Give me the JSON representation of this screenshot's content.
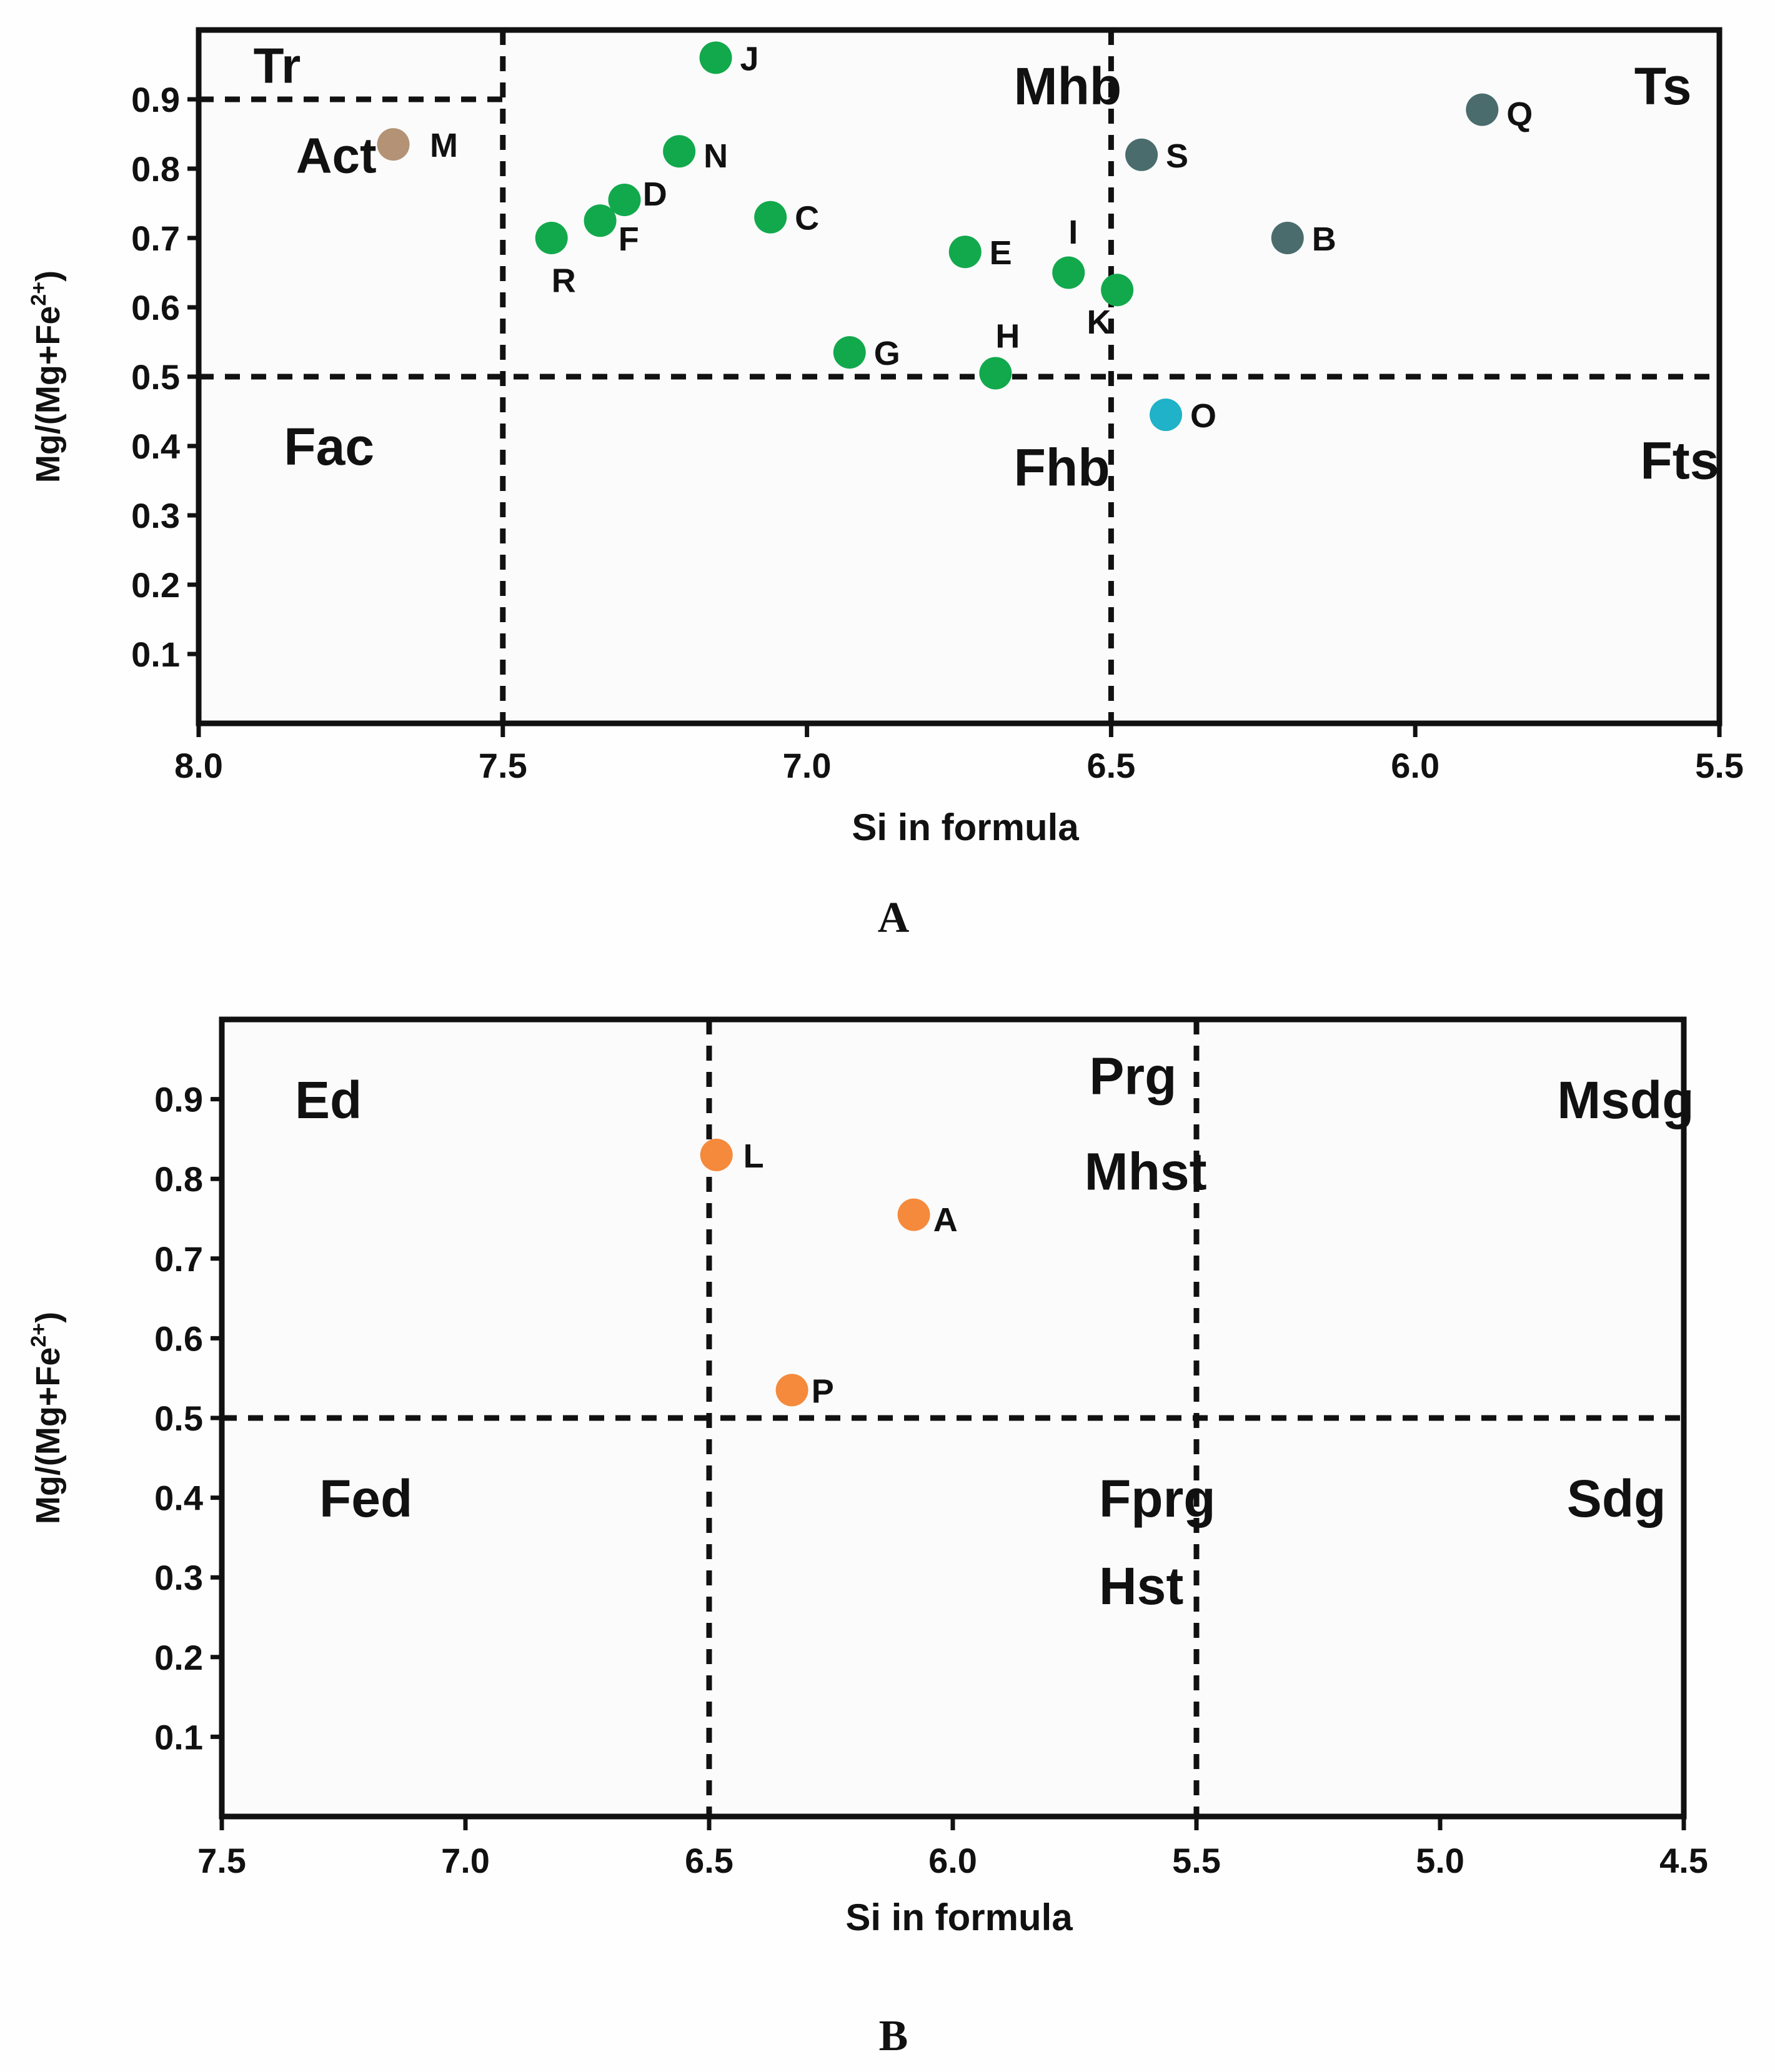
{
  "figure": {
    "panels": [
      "A",
      "B"
    ]
  },
  "chart_data": [
    {
      "type": "scatter",
      "panel_label": "A",
      "xlabel": "Si in formula",
      "ylabel": "Mg/(Mg+Fe²⁺)",
      "ylabel_main": "Mg/(Mg+Fe",
      "ylabel_sup": "2+",
      "ylabel_end": ")",
      "xlim": [
        8.0,
        5.5
      ],
      "ylim": [
        0,
        1
      ],
      "xticks": [
        8.0,
        7.5,
        7.0,
        6.5,
        6.0,
        5.5
      ],
      "xtick_labels": [
        "8.0",
        "7.5",
        "7.0",
        "6.5",
        "6.0",
        "5.5"
      ],
      "yticks": [
        0.1,
        0.2,
        0.3,
        0.4,
        0.5,
        0.6,
        0.7,
        0.8,
        0.9
      ],
      "ytick_labels": [
        "0.1",
        "0.2",
        "0.3",
        "0.4",
        "0.5",
        "0.6",
        "0.7",
        "0.8",
        "0.9"
      ],
      "dividers": {
        "vertical": [
          7.5,
          6.5
        ],
        "horizontal": [
          {
            "y": 0.5,
            "x_from": 8.0,
            "x_to": 5.5
          },
          {
            "y": 0.9,
            "x_from": 8.0,
            "x_to": 7.5
          }
        ]
      },
      "regions": [
        {
          "name": "Tr",
          "x": 7.91,
          "y": 0.95,
          "size": 80
        },
        {
          "name": "Act",
          "x": 7.84,
          "y": 0.82,
          "size": 80
        },
        {
          "name": "Mhb",
          "x": 6.66,
          "y": 0.92,
          "size": 84
        },
        {
          "name": "Ts",
          "x": 5.64,
          "y": 0.92,
          "size": 84
        },
        {
          "name": "Fac",
          "x": 7.86,
          "y": 0.4,
          "size": 84
        },
        {
          "name": "Fhb",
          "x": 6.66,
          "y": 0.37,
          "size": 84
        },
        {
          "name": "Fts",
          "x": 5.63,
          "y": 0.38,
          "size": 84
        }
      ],
      "points": [
        {
          "label": "M",
          "x": 7.68,
          "y": 0.835,
          "color": "#b39275",
          "lx": 7.62,
          "ly": 0.835
        },
        {
          "label": "J",
          "x": 7.15,
          "y": 0.96,
          "color": "#12a94c",
          "lx": 7.11,
          "ly": 0.96
        },
        {
          "label": "N",
          "x": 7.21,
          "y": 0.825,
          "color": "#12a94c",
          "lx": 7.17,
          "ly": 0.82
        },
        {
          "label": "D",
          "x": 7.3,
          "y": 0.755,
          "color": "#12a94c",
          "lx": 7.27,
          "ly": 0.765
        },
        {
          "label": "F",
          "x": 7.34,
          "y": 0.725,
          "color": "#12a94c",
          "lx": 7.31,
          "ly": 0.7
        },
        {
          "label": "R",
          "x": 7.42,
          "y": 0.7,
          "color": "#12a94c",
          "lx": 7.42,
          "ly": 0.64
        },
        {
          "label": "C",
          "x": 7.06,
          "y": 0.73,
          "color": "#12a94c",
          "lx": 7.02,
          "ly": 0.73
        },
        {
          "label": "G",
          "x": 6.93,
          "y": 0.535,
          "color": "#12a94c",
          "lx": 6.89,
          "ly": 0.535
        },
        {
          "label": "E",
          "x": 6.74,
          "y": 0.68,
          "color": "#12a94c",
          "lx": 6.7,
          "ly": 0.68
        },
        {
          "label": "H",
          "x": 6.69,
          "y": 0.505,
          "color": "#12a94c",
          "lx": 6.69,
          "ly": 0.56
        },
        {
          "label": "I",
          "x": 6.57,
          "y": 0.65,
          "color": "#12a94c",
          "lx": 6.57,
          "ly": 0.71
        },
        {
          "label": "K",
          "x": 6.49,
          "y": 0.625,
          "color": "#12a94c",
          "lx": 6.54,
          "ly": 0.58
        },
        {
          "label": "S",
          "x": 6.45,
          "y": 0.82,
          "color": "#4a6c6c",
          "lx": 6.41,
          "ly": 0.82
        },
        {
          "label": "B",
          "x": 6.21,
          "y": 0.7,
          "color": "#4a6c6c",
          "lx": 6.17,
          "ly": 0.7
        },
        {
          "label": "Q",
          "x": 5.89,
          "y": 0.885,
          "color": "#4a6c6c",
          "lx": 5.85,
          "ly": 0.88
        },
        {
          "label": "O",
          "x": 6.41,
          "y": 0.445,
          "color": "#1fb2c8",
          "lx": 6.37,
          "ly": 0.445
        }
      ]
    },
    {
      "type": "scatter",
      "panel_label": "B",
      "xlabel": "Si in formula",
      "ylabel": "Mg/(Mg+Fe²⁺)",
      "ylabel_main": "Mg/(Mg+Fe",
      "ylabel_sup": "2+",
      "ylabel_end": ")",
      "xlim": [
        7.5,
        4.5
      ],
      "ylim": [
        0,
        1
      ],
      "xticks": [
        7.5,
        7.0,
        6.5,
        6.0,
        5.5,
        5.0,
        4.5
      ],
      "xtick_labels": [
        "7.5",
        "7.0",
        "6.5",
        "6.0",
        "5.5",
        "5.0",
        "4.5"
      ],
      "yticks": [
        0.1,
        0.2,
        0.3,
        0.4,
        0.5,
        0.6,
        0.7,
        0.8,
        0.9
      ],
      "ytick_labels": [
        "0.1",
        "0.2",
        "0.3",
        "0.4",
        "0.5",
        "0.6",
        "0.7",
        "0.8",
        "0.9"
      ],
      "dividers": {
        "vertical": [
          6.5,
          5.5
        ],
        "horizontal": [
          {
            "y": 0.5,
            "x_from": 7.5,
            "x_to": 4.5
          }
        ]
      },
      "regions": [
        {
          "name": "Ed",
          "x": 7.35,
          "y": 0.9,
          "size": 84
        },
        {
          "name": "Prg",
          "x": 5.72,
          "y": 0.93,
          "size": 84
        },
        {
          "name": "Mhst",
          "x": 5.73,
          "y": 0.81,
          "size": 84
        },
        {
          "name": "Msdg",
          "x": 4.76,
          "y": 0.9,
          "size": 84
        },
        {
          "name": "Fed",
          "x": 7.3,
          "y": 0.4,
          "size": 84
        },
        {
          "name": "Fprg",
          "x": 5.7,
          "y": 0.4,
          "size": 84
        },
        {
          "name": "Hst",
          "x": 5.7,
          "y": 0.29,
          "size": 84
        },
        {
          "name": "Sdg",
          "x": 4.74,
          "y": 0.4,
          "size": 84
        }
      ],
      "points": [
        {
          "label": "L",
          "x": 6.485,
          "y": 0.83,
          "color": "#f58a3c",
          "lx": 6.43,
          "ly": 0.83
        },
        {
          "label": "A",
          "x": 6.08,
          "y": 0.755,
          "color": "#f58a3c",
          "lx": 6.04,
          "ly": 0.75
        },
        {
          "label": "P",
          "x": 6.33,
          "y": 0.535,
          "color": "#f58a3c",
          "lx": 6.29,
          "ly": 0.535
        }
      ]
    }
  ]
}
